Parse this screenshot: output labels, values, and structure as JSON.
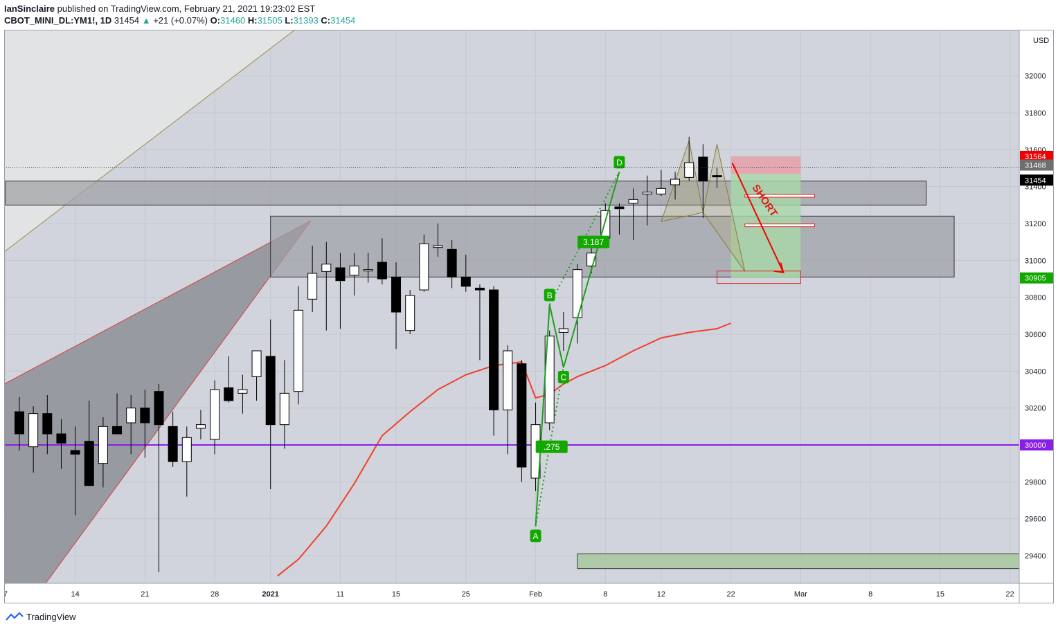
{
  "header": {
    "author": "IanSinclaire",
    "published_text": "published on TradingView.com, February 21, 2021 19:23:02 EST",
    "symbol": "CBOT_MINI_DL:YM1!, 1D",
    "last": "31454",
    "change": "+21 (+0.07%)",
    "o_label": "O:",
    "o": "31460",
    "h_label": "H:",
    "h": "31505",
    "l_label": "L:",
    "l": "31393",
    "c_label": "C:",
    "c": "31454"
  },
  "footer": {
    "brand": "TradingView"
  },
  "colors": {
    "up_body": "#ffffff",
    "down_body": "#000000",
    "ma_line": "#f23e2c",
    "harmonic": "#1e9e1e",
    "purple_line": "#8a1ee6",
    "zone": "#9ea0a5",
    "plot_bg": "#d1d4dc"
  },
  "chart_data": {
    "type": "candlestick",
    "currency": "USD",
    "ylim": [
      29250,
      32250
    ],
    "y_ticks": [
      29400,
      29600,
      29800,
      30000,
      30200,
      30400,
      30600,
      30800,
      31000,
      31200,
      31400,
      31600,
      31800,
      32000
    ],
    "x_ticks": [
      {
        "label": "7",
        "i": -1
      },
      {
        "label": "14",
        "i": 4
      },
      {
        "label": "21",
        "i": 9
      },
      {
        "label": "28",
        "i": 14
      },
      {
        "label": "2021",
        "i": 18
      },
      {
        "label": "11",
        "i": 23
      },
      {
        "label": "15",
        "i": 27
      },
      {
        "label": "25",
        "i": 32
      },
      {
        "label": "Feb",
        "i": 37
      },
      {
        "label": "8",
        "i": 42
      },
      {
        "label": "12",
        "i": 46
      },
      {
        "label": "22",
        "i": 51
      },
      {
        "label": "Mar",
        "i": 56
      },
      {
        "label": "8",
        "i": 61
      },
      {
        "label": "15",
        "i": 66
      },
      {
        "label": "22",
        "i": 71
      }
    ],
    "candles": [
      {
        "o": 30180,
        "h": 30260,
        "l": 29970,
        "c": 30060
      },
      {
        "o": 29990,
        "h": 30210,
        "l": 29850,
        "c": 30170
      },
      {
        "o": 30170,
        "h": 30270,
        "l": 29950,
        "c": 30060
      },
      {
        "o": 30060,
        "h": 30140,
        "l": 29870,
        "c": 30010
      },
      {
        "o": 29970,
        "h": 30100,
        "l": 29620,
        "c": 29950
      },
      {
        "o": 30020,
        "h": 30240,
        "l": 29780,
        "c": 29780
      },
      {
        "o": 29900,
        "h": 30150,
        "l": 29770,
        "c": 30100
      },
      {
        "o": 30100,
        "h": 30280,
        "l": 30060,
        "c": 30060
      },
      {
        "o": 30120,
        "h": 30270,
        "l": 29950,
        "c": 30200
      },
      {
        "o": 30200,
        "h": 30300,
        "l": 29930,
        "c": 30120
      },
      {
        "o": 30290,
        "h": 30330,
        "l": 29310,
        "c": 30110
      },
      {
        "o": 30100,
        "h": 30180,
        "l": 29880,
        "c": 29910
      },
      {
        "o": 29910,
        "h": 30100,
        "l": 29720,
        "c": 30040
      },
      {
        "o": 30090,
        "h": 30190,
        "l": 30030,
        "c": 30110
      },
      {
        "o": 30030,
        "h": 30350,
        "l": 29950,
        "c": 30300
      },
      {
        "o": 30310,
        "h": 30480,
        "l": 30230,
        "c": 30240
      },
      {
        "o": 30280,
        "h": 30380,
        "l": 30170,
        "c": 30300
      },
      {
        "o": 30370,
        "h": 30510,
        "l": 30240,
        "c": 30510
      },
      {
        "o": 30480,
        "h": 30680,
        "l": 29760,
        "c": 30110
      },
      {
        "o": 30110,
        "h": 30460,
        "l": 29980,
        "c": 30280
      },
      {
        "o": 30290,
        "h": 30860,
        "l": 30220,
        "c": 30730
      },
      {
        "o": 30790,
        "h": 31080,
        "l": 30720,
        "c": 30930
      },
      {
        "o": 30940,
        "h": 31100,
        "l": 30620,
        "c": 30980
      },
      {
        "o": 30960,
        "h": 31040,
        "l": 30630,
        "c": 30890
      },
      {
        "o": 30920,
        "h": 31040,
        "l": 30810,
        "c": 30970
      },
      {
        "o": 30950,
        "h": 31040,
        "l": 30880,
        "c": 30950
      },
      {
        "o": 30990,
        "h": 31120,
        "l": 30870,
        "c": 30900
      },
      {
        "o": 30910,
        "h": 30990,
        "l": 30520,
        "c": 30720
      },
      {
        "o": 30620,
        "h": 30840,
        "l": 30600,
        "c": 30810
      },
      {
        "o": 30840,
        "h": 31140,
        "l": 30830,
        "c": 31090
      },
      {
        "o": 31070,
        "h": 31200,
        "l": 31020,
        "c": 31080
      },
      {
        "o": 31060,
        "h": 31110,
        "l": 30850,
        "c": 30910
      },
      {
        "o": 30910,
        "h": 31030,
        "l": 30830,
        "c": 30860
      },
      {
        "o": 30850,
        "h": 30870,
        "l": 30460,
        "c": 30840
      },
      {
        "o": 30840,
        "h": 30860,
        "l": 30050,
        "c": 30190
      },
      {
        "o": 30190,
        "h": 30540,
        "l": 29950,
        "c": 30510
      },
      {
        "o": 30440,
        "h": 30460,
        "l": 29800,
        "c": 29880
      },
      {
        "o": 29820,
        "h": 30230,
        "l": 29750,
        "c": 30110
      },
      {
        "o": 30120,
        "h": 30620,
        "l": 30080,
        "c": 30590
      },
      {
        "o": 30610,
        "h": 30720,
        "l": 30510,
        "c": 30630
      },
      {
        "o": 30690,
        "h": 30980,
        "l": 30550,
        "c": 30950
      },
      {
        "o": 30970,
        "h": 31100,
        "l": 30930,
        "c": 31040
      },
      {
        "o": 31120,
        "h": 31310,
        "l": 31080,
        "c": 31270
      },
      {
        "o": 31290,
        "h": 31310,
        "l": 31140,
        "c": 31280
      },
      {
        "o": 31310,
        "h": 31390,
        "l": 31110,
        "c": 31330
      },
      {
        "o": 31360,
        "h": 31460,
        "l": 31190,
        "c": 31370
      },
      {
        "o": 31360,
        "h": 31490,
        "l": 31350,
        "c": 31390
      },
      {
        "o": 31410,
        "h": 31480,
        "l": 31330,
        "c": 31440
      },
      {
        "o": 31450,
        "h": 31670,
        "l": 31430,
        "c": 31530
      },
      {
        "o": 31560,
        "h": 31630,
        "l": 31230,
        "c": 31430
      },
      {
        "o": 31460,
        "h": 31505,
        "l": 31393,
        "c": 31454
      }
    ],
    "moving_average": [
      {
        "i": 18.5,
        "v": 29290
      },
      {
        "i": 20,
        "v": 29380
      },
      {
        "i": 22,
        "v": 29560
      },
      {
        "i": 24,
        "v": 29790
      },
      {
        "i": 26,
        "v": 30050
      },
      {
        "i": 28,
        "v": 30180
      },
      {
        "i": 30,
        "v": 30300
      },
      {
        "i": 32,
        "v": 30380
      },
      {
        "i": 34,
        "v": 30430
      },
      {
        "i": 36,
        "v": 30450
      },
      {
        "i": 37,
        "v": 30255
      },
      {
        "i": 38,
        "v": 30275
      },
      {
        "i": 39,
        "v": 30330
      },
      {
        "i": 40,
        "v": 30370
      },
      {
        "i": 42,
        "v": 30430
      },
      {
        "i": 44,
        "v": 30510
      },
      {
        "i": 46,
        "v": 30580
      },
      {
        "i": 48,
        "v": 30610
      },
      {
        "i": 50,
        "v": 30630
      },
      {
        "i": 51,
        "v": 30660
      }
    ],
    "purple_level": 30000,
    "zones": [
      {
        "i0": -1,
        "i1": 65,
        "y0": 31300,
        "y1": 31430
      },
      {
        "i0": 18,
        "i1": 67,
        "y0": 30910,
        "y1": 31240
      },
      {
        "i0": 40,
        "i1": 73,
        "y0": 29330,
        "y1": 29410
      }
    ],
    "harmonic": {
      "points": [
        {
          "label": "A",
          "i": 37,
          "v": 29560
        },
        {
          "label": "B",
          "i": 38,
          "v": 30760
        },
        {
          "label": "C",
          "i": 39,
          "v": 30420
        },
        {
          "label": "D",
          "i": 43,
          "v": 31480
        }
      ],
      "ratios": [
        {
          "text": ".275",
          "i": 38,
          "v": 29990
        },
        {
          "text": "3.187",
          "i": 41,
          "v": 31100
        }
      ]
    },
    "trade": {
      "label": "SHORT",
      "entry": 31468,
      "stop": 31564,
      "target": 30905,
      "i0": 51,
      "i1": 56
    },
    "price_labels": [
      {
        "text": "31564",
        "v": 31564,
        "bg": "#f20000",
        "fg": "#ffffff"
      },
      {
        "text": "31468",
        "v": 31468,
        "bg": "#6e6e6e",
        "fg": "#ffffff"
      },
      {
        "text": "31454",
        "v": 31454,
        "bg": "#000000",
        "fg": "#ffffff"
      },
      {
        "text": "30905",
        "v": 30905,
        "bg": "#13a800",
        "fg": "#ffffff"
      },
      {
        "text": "30000",
        "v": 30000,
        "bg": "#8a1ee6",
        "fg": "#ffffff"
      }
    ]
  }
}
